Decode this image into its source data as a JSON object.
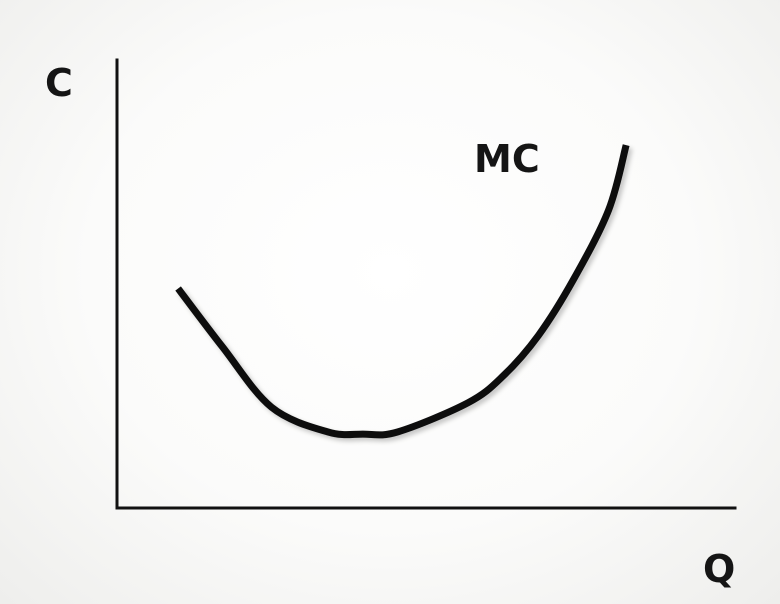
{
  "chart_data": {
    "type": "line",
    "title": "",
    "xlabel": "Q",
    "ylabel": "C",
    "grid": false,
    "legend": "none",
    "series": [
      {
        "name": "MC",
        "x": [
          0.87,
          1.5,
          2.2,
          3.0,
          3.5,
          4.0,
          5.0,
          5.5,
          6.0,
          6.5,
          7.0,
          7.25
        ],
        "y": [
          4.9,
          3.6,
          2.25,
          1.7,
          1.65,
          1.7,
          2.35,
          2.95,
          3.85,
          5.1,
          6.65,
          8.1
        ]
      }
    ],
    "xlim": [
      0,
      8.8
    ],
    "ylim": [
      0,
      10
    ],
    "color": "#111111"
  }
}
